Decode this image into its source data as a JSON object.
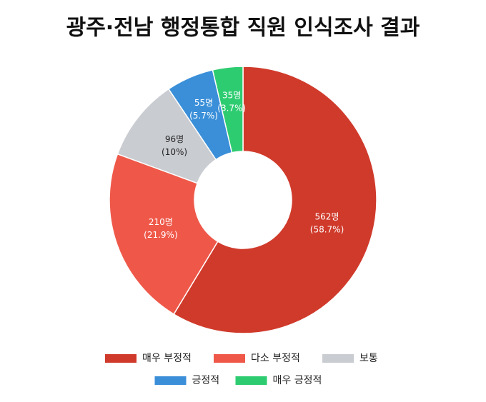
{
  "chart_data": {
    "type": "donut",
    "title": "광주·전남 행정통합 직원 인식조사 결과",
    "categories": [
      "매우 부정적",
      "다소 부정적",
      "보통",
      "긍정적",
      "매우 긍정적"
    ],
    "values": [
      562,
      210,
      96,
      55,
      35
    ],
    "value_labels": [
      "562명",
      "210명",
      "96명",
      "55명",
      "35명"
    ],
    "share_labels": [
      "(58.7%)",
      "(21.9%)",
      "(10%)",
      "(5.7%)",
      "(3.7%)"
    ],
    "colors": [
      "#d03a2b",
      "#ef5849",
      "#c9ccd1",
      "#3a8fd8",
      "#2ecc71"
    ]
  }
}
